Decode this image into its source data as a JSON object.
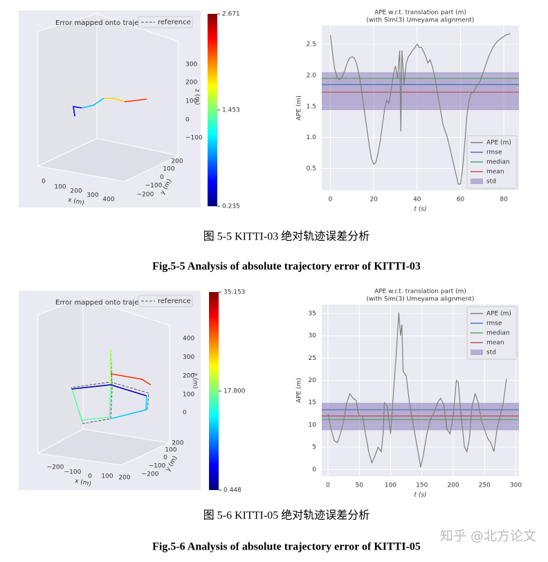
{
  "chart_data": [
    {
      "type": "line",
      "title": "APE w.r.t. translation part (m)",
      "subtitle": "(with Sim(3) Umeyama alignment)",
      "xlabel": "t (s)",
      "ylabel": "APE (m)",
      "legend": "lower right",
      "grid": true,
      "xlim": [
        -4,
        87
      ],
      "xticks": [
        0,
        20,
        40,
        60,
        80
      ],
      "ylim": [
        0.15,
        2.8
      ],
      "yticks": [
        0.5,
        {
          "value": 1,
          "label": "1.0"
        },
        1.5,
        {
          "value": 2,
          "label": "2.0"
        },
        2.5
      ],
      "series": [
        {
          "name": "APE (m)",
          "color": "#7f7f7f",
          "x": [
            0,
            1,
            2,
            3,
            4,
            5,
            6,
            7,
            8,
            9,
            10,
            11,
            12,
            13,
            14,
            15,
            16,
            17,
            18,
            19,
            20,
            21,
            22,
            23,
            24,
            25,
            26,
            27,
            28,
            29,
            30,
            31,
            32,
            32.5,
            33,
            34,
            35,
            36,
            37,
            38,
            39,
            40,
            41,
            42,
            43,
            44,
            45,
            46,
            47,
            48,
            49,
            50,
            51,
            52,
            53,
            54,
            55,
            56,
            57,
            58,
            59,
            60,
            61,
            62,
            63,
            64,
            65,
            66,
            67,
            68,
            69,
            70,
            71,
            72,
            73,
            75,
            77,
            79,
            81,
            83
          ],
          "values": [
            2.65,
            2.35,
            2.1,
            1.98,
            1.93,
            1.95,
            2.02,
            2.12,
            2.22,
            2.28,
            2.3,
            2.28,
            2.2,
            2.05,
            1.85,
            1.6,
            1.35,
            1.1,
            0.85,
            0.65,
            0.57,
            0.6,
            0.75,
            0.95,
            1.2,
            1.45,
            1.6,
            1.55,
            1.75,
            2.0,
            2.15,
            1.95,
            2.4,
            1.1,
            2.4,
            1.85,
            2.2,
            2.3,
            2.35,
            2.4,
            2.45,
            2.5,
            2.45,
            2.45,
            2.38,
            2.3,
            2.2,
            2.25,
            2.15,
            2.0,
            1.8,
            1.6,
            1.4,
            1.2,
            1.1,
            1.0,
            0.85,
            0.7,
            0.55,
            0.4,
            0.25,
            0.25,
            0.5,
            0.9,
            1.35,
            1.6,
            1.72,
            1.72,
            1.8,
            1.85,
            1.9,
            2.0,
            2.1,
            2.2,
            2.3,
            2.45,
            2.55,
            2.6,
            2.65,
            2.67
          ]
        }
      ],
      "lines": [
        {
          "name": "rmse",
          "color": "#4c72b0",
          "value": 1.85
        },
        {
          "name": "median",
          "color": "#55a868",
          "value": 1.95
        },
        {
          "name": "mean",
          "color": "#c44e52",
          "value": 1.73
        }
      ],
      "band": {
        "name": "std",
        "color": "#8172b2",
        "lower": 1.44,
        "upper": 2.05
      }
    },
    {
      "type": "line",
      "title": "APE w.r.t. translation part (m)",
      "subtitle": "(with Sim(3) Umeyama alignment)",
      "xlabel": "t (s)",
      "ylabel": "APE (m)",
      "legend": "upper right",
      "grid": true,
      "xlim": [
        -10,
        305
      ],
      "xticks": [
        0,
        50,
        100,
        150,
        200,
        250,
        300
      ],
      "ylim": [
        -1.5,
        37
      ],
      "yticks": [
        0,
        5,
        10,
        15,
        20,
        25,
        30,
        35
      ],
      "series": [
        {
          "name": "APE (m)",
          "color": "#7f7f7f",
          "x": [
            0,
            5,
            10,
            15,
            20,
            25,
            30,
            35,
            40,
            45,
            48,
            50,
            55,
            60,
            65,
            70,
            75,
            80,
            85,
            88,
            90,
            95,
            100,
            105,
            110,
            113,
            116,
            118,
            120,
            125,
            130,
            135,
            140,
            145,
            148,
            152,
            158,
            163,
            170,
            175,
            180,
            185,
            190,
            195,
            200,
            205,
            208,
            212,
            218,
            222,
            226,
            230,
            235,
            240,
            245,
            250,
            255,
            260,
            265,
            270,
            275,
            280,
            285
          ],
          "values": [
            12.5,
            9,
            6.5,
            6,
            8,
            11,
            15,
            17,
            16,
            15.5,
            13,
            12,
            12,
            8,
            4,
            1.5,
            3,
            5,
            4,
            8,
            15,
            14,
            8,
            18,
            28,
            35.2,
            30,
            32.5,
            22,
            21,
            15,
            11,
            7,
            3,
            0.5,
            3,
            8,
            11,
            13,
            15,
            16,
            14.5,
            9,
            8,
            12,
            20,
            19.5,
            13,
            5,
            4,
            7,
            14,
            17,
            15,
            11,
            9,
            7,
            6,
            4,
            9,
            12,
            15,
            20.3
          ]
        }
      ],
      "lines": [
        {
          "name": "rmse",
          "color": "#4c72b0",
          "value": 13.4
        },
        {
          "name": "median",
          "color": "#55a868",
          "value": 11.2
        },
        {
          "name": "mean",
          "color": "#c44e52",
          "value": 12.0
        }
      ],
      "band": {
        "name": "std",
        "color": "#8172b2",
        "lower": 8.8,
        "upper": 15.0
      }
    }
  ],
  "figures": [
    {
      "trajectory": {
        "title": "Error mapped onto trajectory",
        "legend": "reference",
        "xlabel": "x (m)",
        "ylabel": "y (m)",
        "zlabel": "z (m)",
        "xticks": [
          "0",
          "100",
          "200",
          "300",
          "400"
        ],
        "yticks": [
          "−200",
          "−100",
          "0",
          "100",
          "200"
        ],
        "zticks": [
          "−100",
          "0",
          "100",
          "200",
          "300"
        ]
      },
      "colorbar": {
        "type": "colorbar",
        "ylim": [
          0.235,
          2.671
        ],
        "yticks": [
          0.235,
          1.453,
          2.671
        ]
      },
      "caption_cn": "图 5-5 KITTI-03 绝对轨迹误差分析",
      "caption_en": "Fig.5-5 Analysis of absolute trajectory error of KITTI-03"
    },
    {
      "trajectory": {
        "title": "Error mapped onto trajectory",
        "legend": "reference",
        "xlabel": "x (m)",
        "ylabel": "y (m)",
        "zlabel": "z (m)",
        "xticks": [
          "−200",
          "−100",
          "0",
          "100",
          "200"
        ],
        "yticks": [
          "−200",
          "−100",
          "0",
          "100",
          "200"
        ],
        "zticks": [
          "0",
          "100",
          "200",
          "300",
          "400"
        ]
      },
      "colorbar": {
        "type": "colorbar",
        "ylim": [
          0.448,
          35.153
        ],
        "yticks": [
          0.448,
          {
            "value": 17.8,
            "label": "17.800"
          },
          35.153
        ]
      },
      "caption_cn": "图 5-6 KITTI-05 绝对轨迹误差分析",
      "caption_en": "Fig.5-6 Analysis of absolute trajectory error of KITTI-05"
    }
  ],
  "watermark": "知乎 @北方论文"
}
